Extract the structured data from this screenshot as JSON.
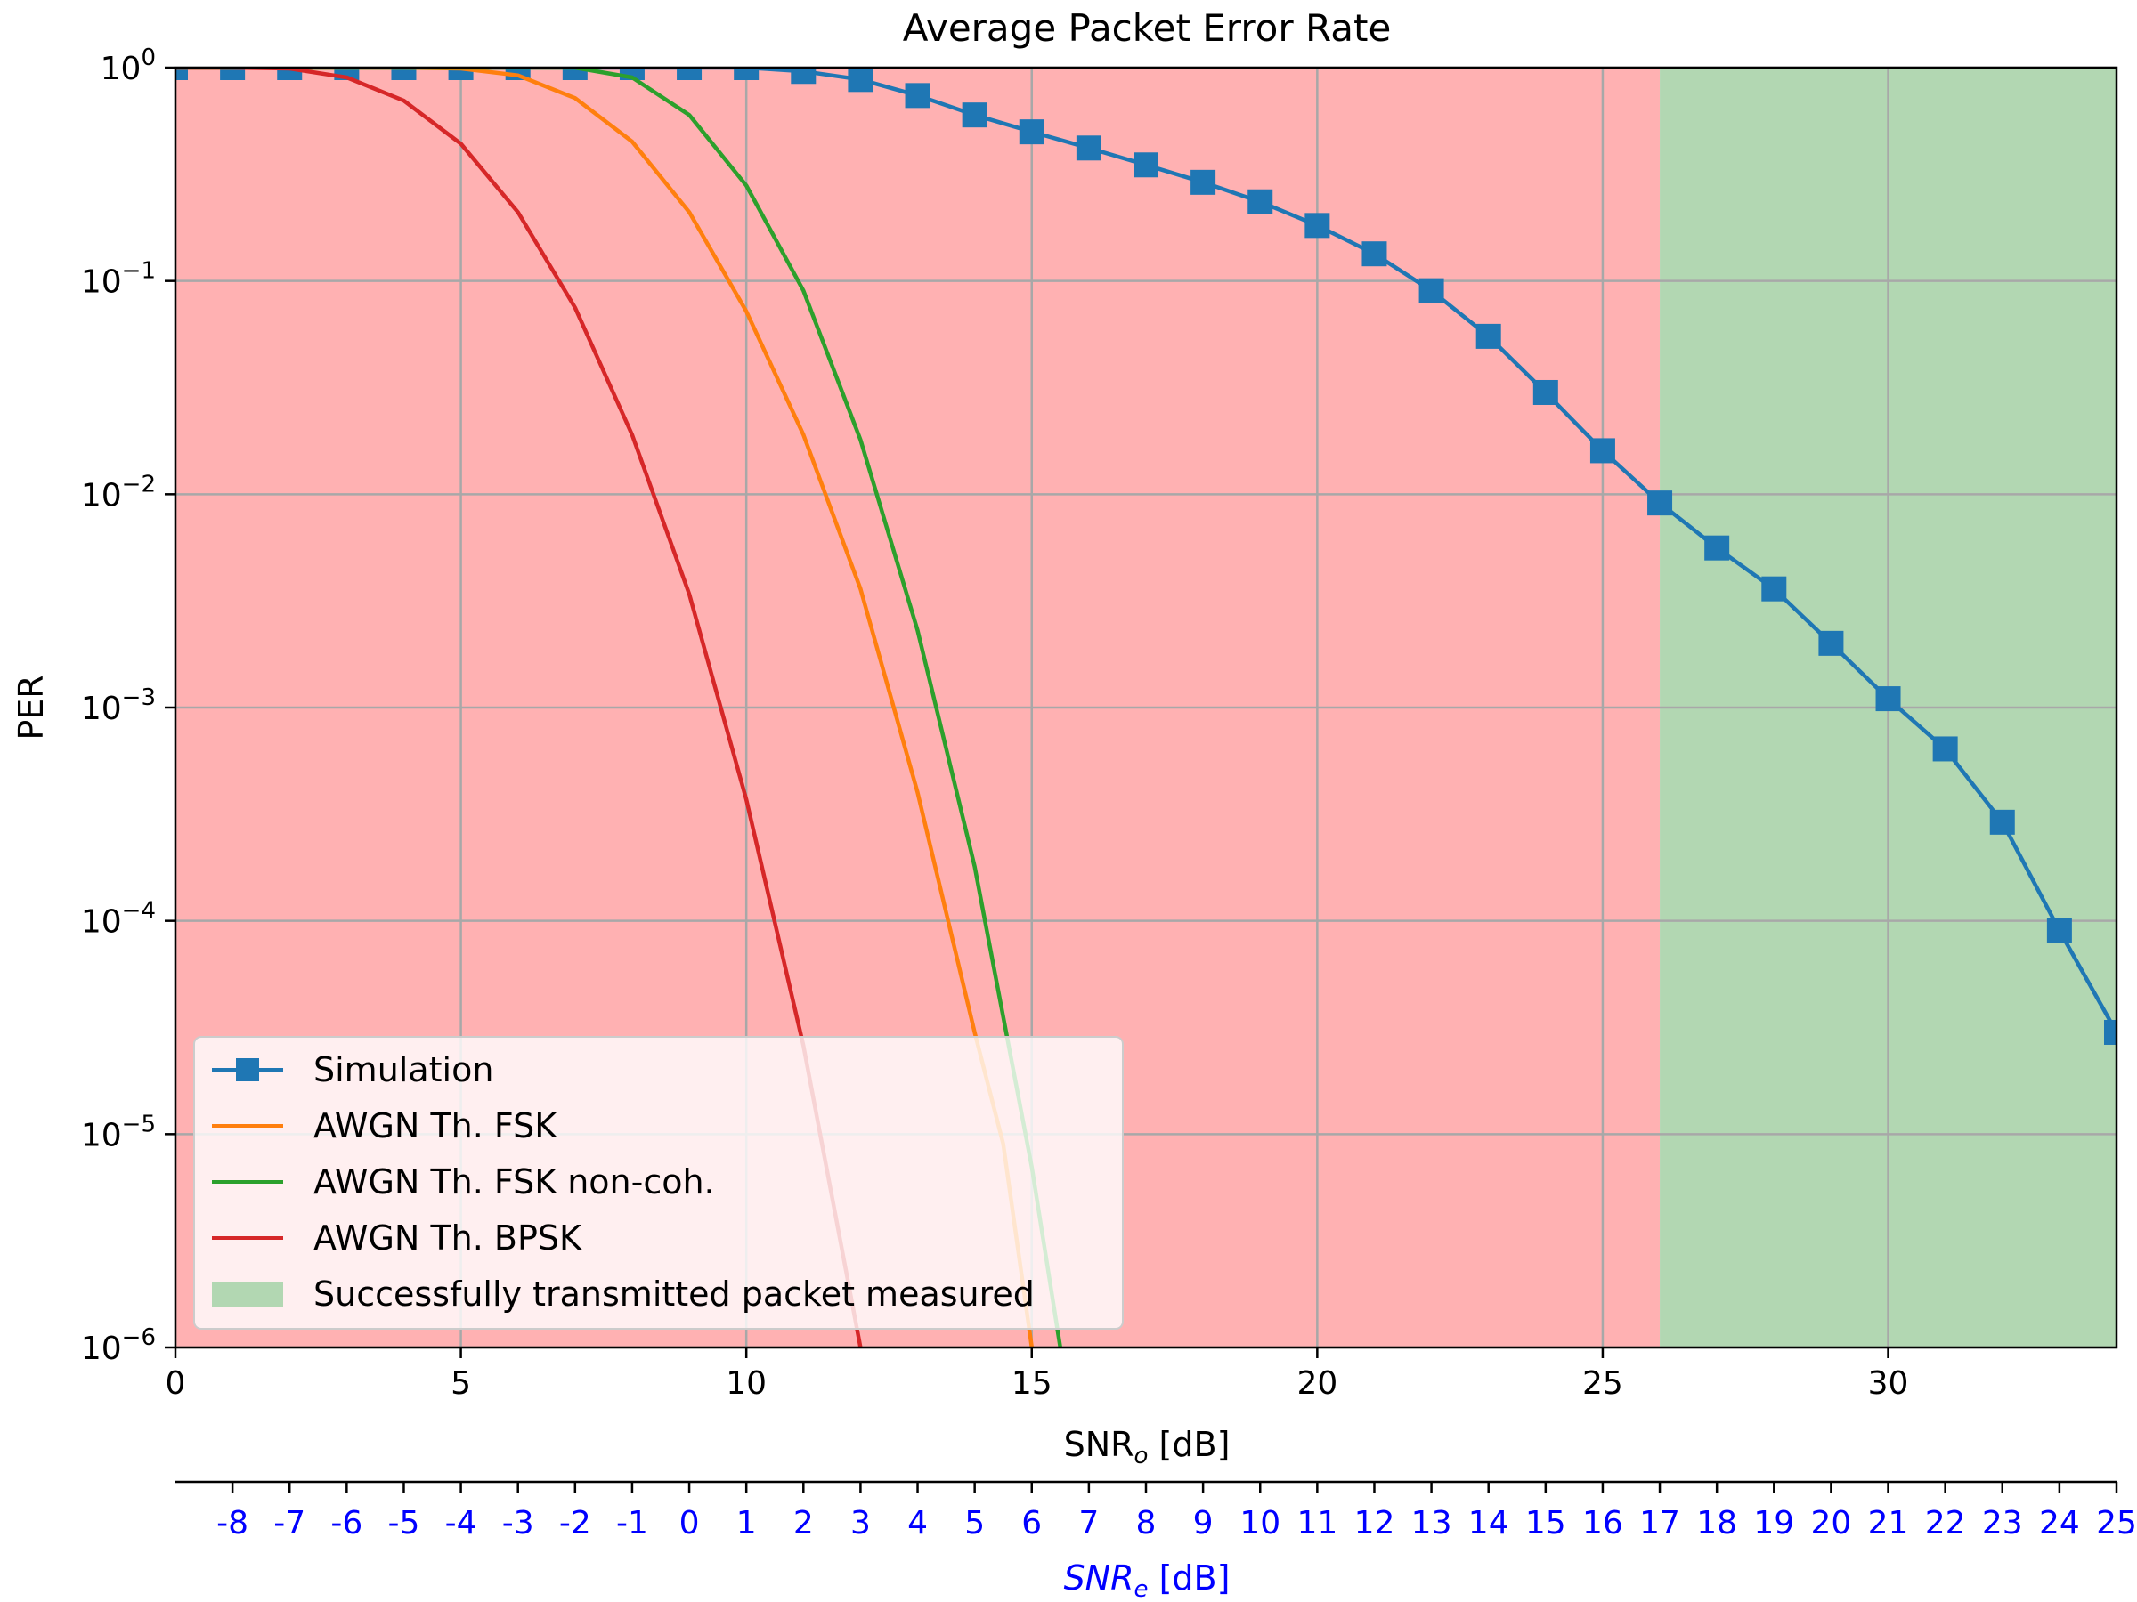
{
  "chart_data": {
    "type": "line",
    "title": "Average Packet Error Rate",
    "xlabel": "SNR",
    "xlabel_sub": "o",
    "xlabel_unit": " [dB]",
    "ylabel": "PER",
    "xlim": [
      0,
      34
    ],
    "ylim": [
      1e-06,
      1
    ],
    "yscale": "log",
    "grid": true,
    "legend_position": "lower-left",
    "x_ticks": [
      "0",
      "5",
      "10",
      "15",
      "20",
      "25",
      "30"
    ],
    "y_ticks": [
      {
        "base": "10",
        "exp": "0",
        "value": 1
      },
      {
        "base": "10",
        "exp": "−1",
        "value": 0.1
      },
      {
        "base": "10",
        "exp": "−2",
        "value": 0.01
      },
      {
        "base": "10",
        "exp": "−3",
        "value": 0.001
      },
      {
        "base": "10",
        "exp": "−4",
        "value": 0.0001
      },
      {
        "base": "10",
        "exp": "−5",
        "value": 1e-05
      },
      {
        "base": "10",
        "exp": "−6",
        "value": 1e-06
      }
    ],
    "secondary_axis": {
      "label": "SNR",
      "label_sub": "e",
      "label_unit": " [dB]",
      "color": "#0000ff",
      "offset_db": 9,
      "ticks": [
        "-8",
        "-7",
        "-6",
        "-5",
        "-4",
        "-3",
        "-2",
        "-1",
        "0",
        "1",
        "2",
        "3",
        "4",
        "5",
        "6",
        "7",
        "8",
        "9",
        "10",
        "11",
        "12",
        "13",
        "14",
        "15",
        "16",
        "17",
        "18",
        "19",
        "20",
        "21",
        "22",
        "23",
        "24",
        "25"
      ]
    },
    "regions": [
      {
        "x_start": 0,
        "x_end": 26,
        "color": "#ffb1b2",
        "label": ""
      },
      {
        "x_start": 26,
        "x_end": 34,
        "color": "#b2d7b2",
        "label": "Successfully transmitted packet measured"
      }
    ],
    "series": [
      {
        "name": "Simulation",
        "color": "#1f77b4",
        "marker": "square",
        "x": [
          0,
          1,
          2,
          3,
          4,
          5,
          6,
          7,
          8,
          9,
          10,
          11,
          12,
          13,
          14,
          15,
          16,
          17,
          18,
          19,
          20,
          21,
          22,
          23,
          24,
          25,
          26,
          27,
          28,
          29,
          30,
          31,
          32,
          33,
          34
        ],
        "y": [
          1,
          1,
          1,
          1,
          1,
          1,
          1,
          1,
          1,
          1,
          1,
          0.96,
          0.88,
          0.74,
          0.6,
          0.5,
          0.42,
          0.35,
          0.29,
          0.235,
          0.182,
          0.134,
          0.09,
          0.055,
          0.03,
          0.016,
          0.0091,
          0.0056,
          0.0036,
          0.002,
          0.0011,
          0.00064,
          0.00029,
          9e-05,
          3e-05
        ]
      },
      {
        "name": "AWGN Th. FSK",
        "color": "#ff7f0e",
        "marker": "none",
        "x": [
          0,
          1,
          2,
          3,
          4,
          5,
          6,
          7,
          8,
          9,
          10,
          11,
          12,
          13,
          14,
          14.5,
          15
        ],
        "y": [
          1,
          1,
          1,
          1,
          1,
          0.99,
          0.92,
          0.72,
          0.45,
          0.21,
          0.072,
          0.019,
          0.0036,
          0.0004,
          3e-05,
          9e-06,
          1e-06
        ]
      },
      {
        "name": "AWGN Th. FSK non-coh.",
        "color": "#2ca02c",
        "marker": "none",
        "x": [
          0,
          1,
          2,
          3,
          4,
          5,
          6,
          7,
          8,
          9,
          10,
          11,
          12,
          13,
          14,
          15,
          15.5
        ],
        "y": [
          1,
          1,
          1,
          1,
          1,
          1,
          1,
          1,
          0.9,
          0.6,
          0.28,
          0.09,
          0.018,
          0.0023,
          0.00018,
          7e-06,
          1e-06
        ]
      },
      {
        "name": "AWGN Th. BPSK",
        "color": "#d62728",
        "marker": "none",
        "x": [
          0,
          1,
          2,
          3,
          4,
          5,
          6,
          7,
          8,
          9,
          10,
          11,
          12
        ],
        "y": [
          1,
          1,
          0.99,
          0.9,
          0.7,
          0.44,
          0.21,
          0.075,
          0.019,
          0.0034,
          0.00037,
          2.6e-05,
          1e-06
        ]
      }
    ]
  }
}
